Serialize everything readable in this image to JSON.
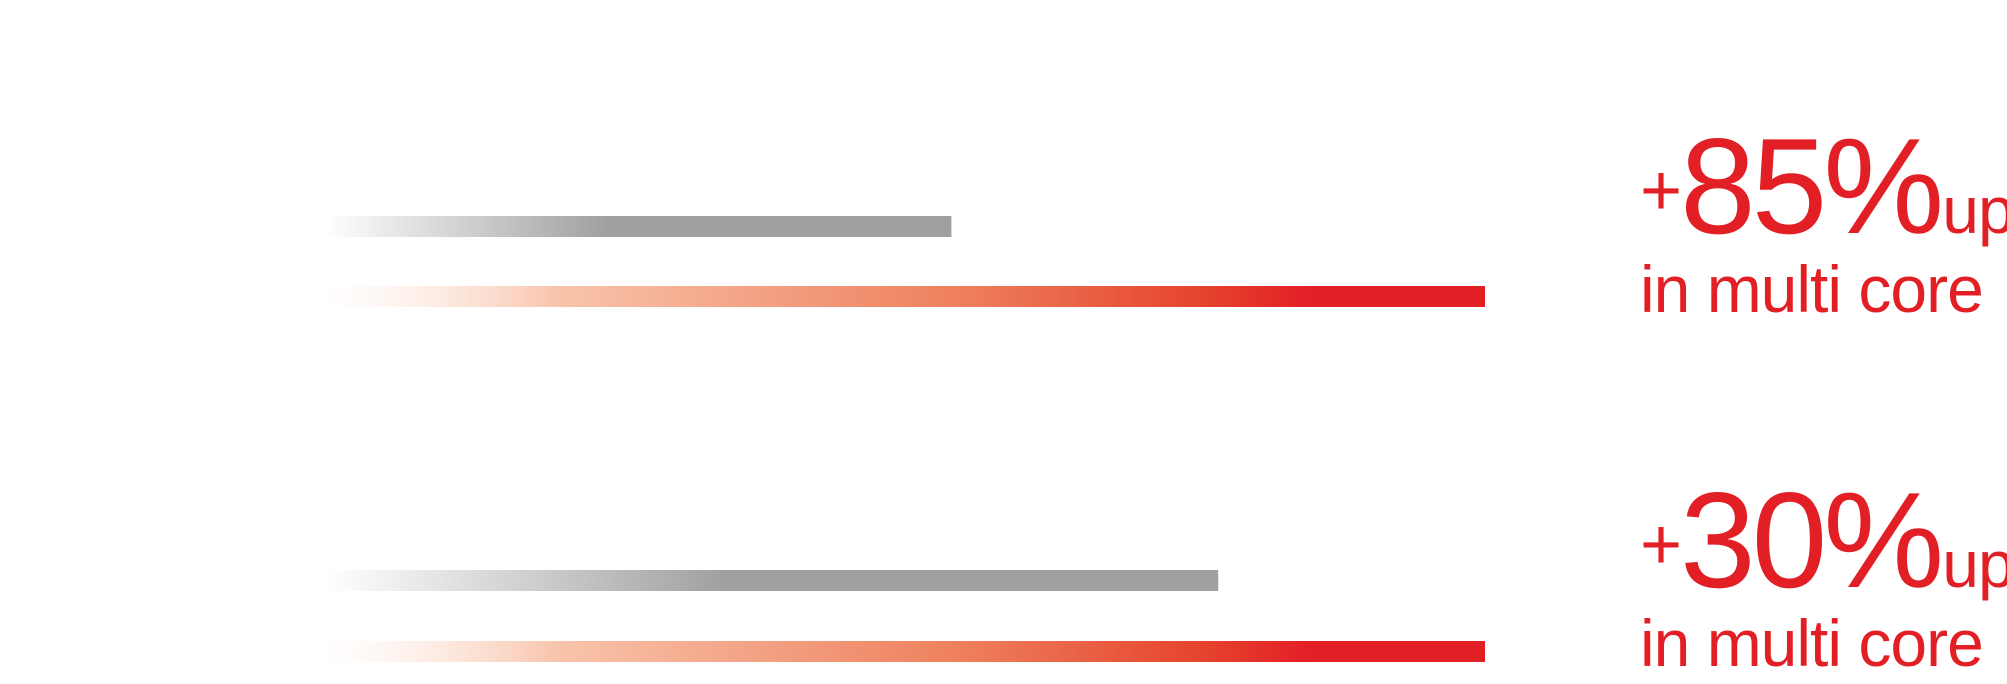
{
  "colors": {
    "baseline_bar": "#a0a0a0",
    "highlight_bar": "#e31f26",
    "text_accent": "#e31f26"
  },
  "chart_data": {
    "type": "bar",
    "orientation": "horizontal",
    "grid": false,
    "legend": "none",
    "xlim": [
      0,
      1
    ],
    "groups": [
      {
        "baseline_value": 0.54,
        "improved_value": 1.0,
        "stat": {
          "sign": "+",
          "value": "85",
          "percent": "%",
          "suffix": "up",
          "caption": "in multi core"
        }
      },
      {
        "baseline_value": 0.77,
        "improved_value": 1.0,
        "stat": {
          "sign": "+",
          "value": "30",
          "percent": "%",
          "suffix": "up",
          "caption": "in multi core"
        }
      }
    ]
  }
}
